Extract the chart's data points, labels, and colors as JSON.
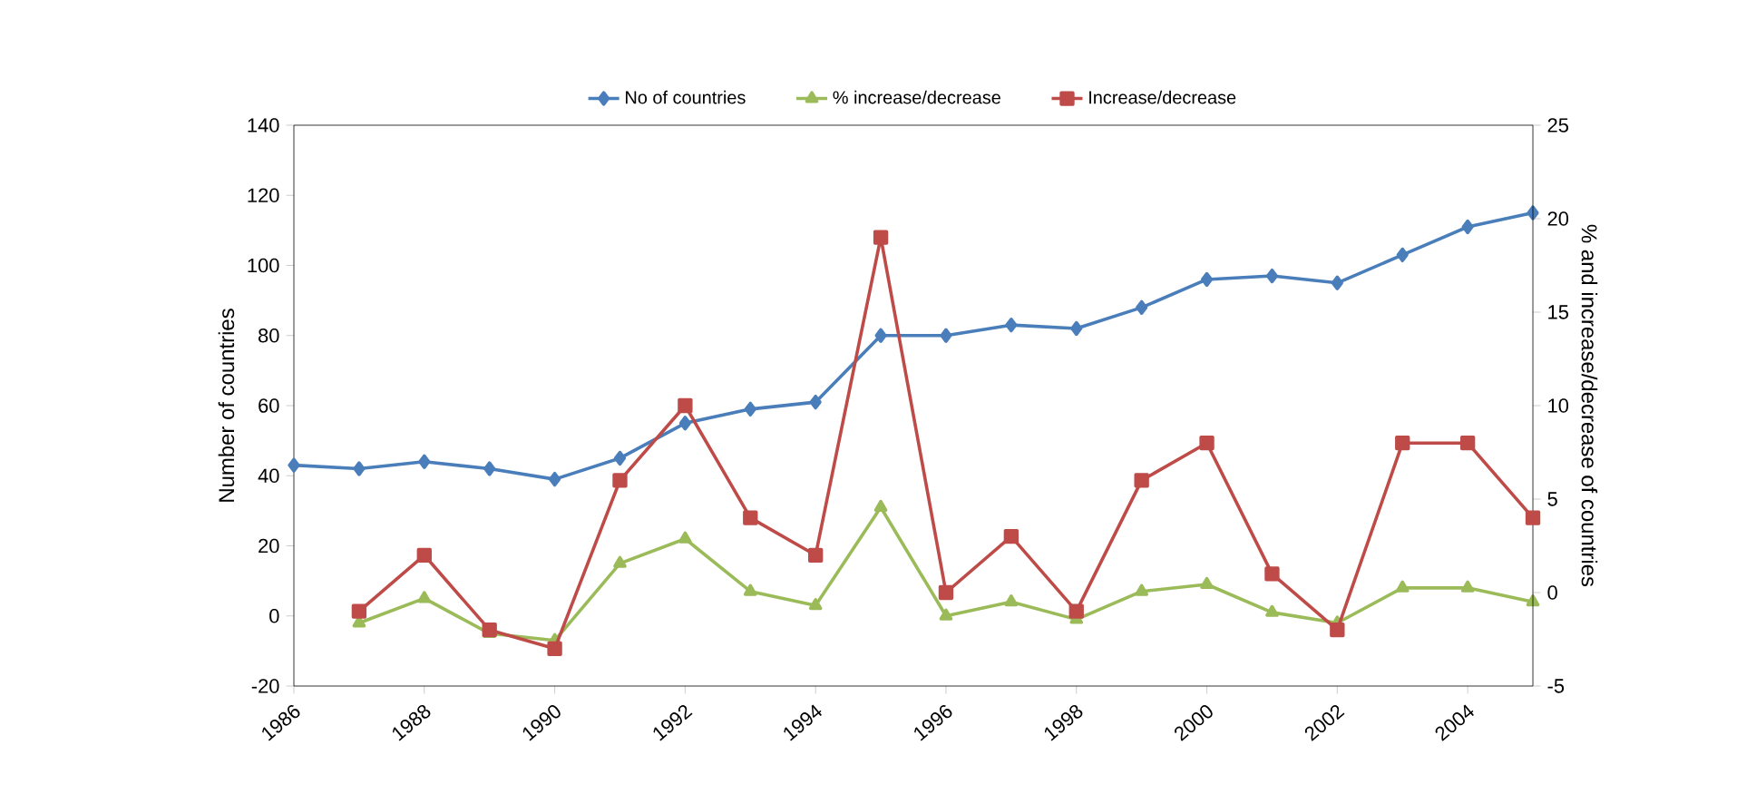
{
  "chart_data": {
    "type": "line",
    "ylabel": "Number of countries",
    "y2label": "% and increase/decrease of countries",
    "x": [
      1986,
      1987,
      1988,
      1989,
      1990,
      1991,
      1992,
      1993,
      1994,
      1995,
      1996,
      1997,
      1998,
      1999,
      2000,
      2001,
      2002,
      2003,
      2004,
      2005
    ],
    "series": [
      {
        "name": "No of countries",
        "color": "#4a7ebb",
        "marker": "diamond",
        "values": [
          43,
          42,
          44,
          42,
          39,
          45,
          55,
          59,
          61,
          80,
          80,
          83,
          82,
          88,
          96,
          97,
          95,
          103,
          111,
          115
        ]
      },
      {
        "name": "% increase/decrease",
        "color": "#9bbb59",
        "marker": "triangle",
        "values": [
          null,
          -2,
          5,
          -5,
          -7,
          15,
          22,
          7,
          3,
          31,
          0,
          4,
          -1,
          7,
          9,
          1,
          -2,
          8,
          8,
          4
        ]
      },
      {
        "name": "Increase/decrease",
        "color": "#be4b48",
        "marker": "square",
        "axis": "y2",
        "values": [
          null,
          -1,
          2,
          -2,
          -3,
          6,
          10,
          4,
          2,
          19,
          0,
          3,
          -1,
          6,
          8,
          1,
          -2,
          8,
          8,
          4
        ]
      }
    ],
    "xlim": [
      1986,
      2005
    ],
    "xticks": [
      1986,
      1988,
      1990,
      1992,
      1994,
      1996,
      1998,
      2000,
      2002,
      2004
    ],
    "ylim": [
      -20,
      140
    ],
    "yticks": [
      -20,
      0,
      20,
      40,
      60,
      80,
      100,
      120,
      140
    ],
    "y2lim": [
      -5,
      25
    ],
    "y2ticks": [
      -5,
      0,
      5,
      10,
      15,
      20,
      25
    ],
    "legend": "top",
    "grid": false,
    "line_style": "solid"
  }
}
